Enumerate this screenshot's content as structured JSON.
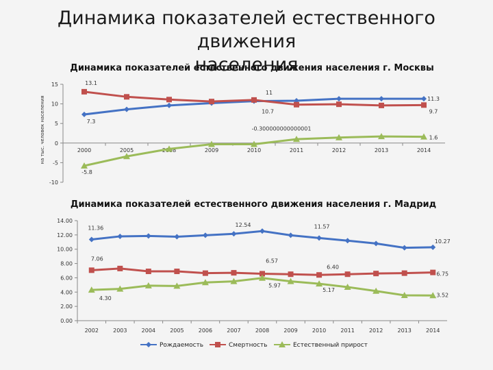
{
  "slide": {
    "title_line1": "Динамика показателей естественного движения",
    "title_line2": "населения"
  },
  "colors": {
    "births": "#4472C4",
    "deaths": "#C0504D",
    "growth": "#9BBB59"
  },
  "chart_data": [
    {
      "type": "line",
      "title": "Динамика показателей естественного движения населения г. Москвы",
      "ylabel": "на тыс. человек населения",
      "xlabel": "",
      "ylim": [
        -10,
        15
      ],
      "yticks": [
        "15",
        "10",
        "5",
        "0",
        "-5",
        "-10"
      ],
      "categories": [
        "2000",
        "2005",
        "2008",
        "2009",
        "2010",
        "2011",
        "2012",
        "2013",
        "2014"
      ],
      "grid": false,
      "series": [
        {
          "key": "births",
          "values": [
            7.3,
            8.6,
            9.6,
            10.2,
            10.7,
            10.8,
            11.3,
            11.3,
            11.3
          ]
        },
        {
          "key": "deaths",
          "values": [
            13.1,
            11.8,
            11.1,
            10.6,
            11.0,
            9.8,
            9.9,
            9.6,
            9.7
          ]
        },
        {
          "key": "growth",
          "values": [
            -5.8,
            -3.4,
            -1.5,
            -0.3,
            -0.300000000000001,
            1.0,
            1.4,
            1.7,
            1.6
          ]
        }
      ],
      "data_labels": [
        {
          "series": "deaths",
          "index": 0,
          "text": "13.1"
        },
        {
          "series": "births",
          "index": 0,
          "text": "7.3"
        },
        {
          "series": "deaths",
          "index": 4,
          "text": "11"
        },
        {
          "series": "births",
          "index": 4,
          "text": "10.7"
        },
        {
          "series": "growth",
          "index": 4,
          "text": "-0.300000000000001"
        },
        {
          "series": "births",
          "index": 8,
          "text": "11.3"
        },
        {
          "series": "deaths",
          "index": 8,
          "text": "9.7"
        },
        {
          "series": "growth",
          "index": 8,
          "text": "1.6"
        },
        {
          "series": "growth",
          "index": 0,
          "text": "-5.8"
        }
      ]
    },
    {
      "type": "line",
      "title": "Динамика показателей естественного движения населения г. Мадрид",
      "ylim": [
        0,
        14
      ],
      "yticks": [
        "14.00",
        "12.00",
        "10.00",
        "8.00",
        "6.00",
        "4.00",
        "2.00",
        "0.00"
      ],
      "categories": [
        "2002",
        "2003",
        "2004",
        "2005",
        "2006",
        "2007",
        "2008",
        "2009",
        "2010",
        "2011",
        "2012",
        "2013",
        "2014"
      ],
      "grid": false,
      "legend": "bottom",
      "series": [
        {
          "key": "births",
          "name": "Рождаемость",
          "values": [
            11.36,
            11.8,
            11.85,
            11.75,
            11.95,
            12.15,
            12.54,
            11.95,
            11.57,
            11.2,
            10.8,
            10.2,
            10.27
          ]
        },
        {
          "key": "deaths",
          "name": "Смертность",
          "values": [
            7.06,
            7.3,
            6.9,
            6.9,
            6.65,
            6.7,
            6.57,
            6.5,
            6.4,
            6.5,
            6.6,
            6.65,
            6.75
          ]
        },
        {
          "key": "growth",
          "name": "Естественный прирост",
          "values": [
            4.3,
            4.45,
            4.9,
            4.85,
            5.35,
            5.5,
            5.97,
            5.5,
            5.17,
            4.7,
            4.15,
            3.55,
            3.52
          ]
        }
      ],
      "data_labels": [
        {
          "series": "births",
          "index": 0,
          "text": "11.36"
        },
        {
          "series": "deaths",
          "index": 0,
          "text": "7.06"
        },
        {
          "series": "growth",
          "index": 0,
          "text": "4.30"
        },
        {
          "series": "births",
          "index": 6,
          "text": "12.54"
        },
        {
          "series": "deaths",
          "index": 6,
          "text": "6.57"
        },
        {
          "series": "growth",
          "index": 6,
          "text": "5.97"
        },
        {
          "series": "births",
          "index": 8,
          "text": "11.57"
        },
        {
          "series": "deaths",
          "index": 8,
          "text": "6.40"
        },
        {
          "series": "growth",
          "index": 8,
          "text": "5.17"
        },
        {
          "series": "births",
          "index": 12,
          "text": "10.27"
        },
        {
          "series": "deaths",
          "index": 12,
          "text": "6.75"
        },
        {
          "series": "growth",
          "index": 12,
          "text": "3.52"
        }
      ]
    }
  ]
}
